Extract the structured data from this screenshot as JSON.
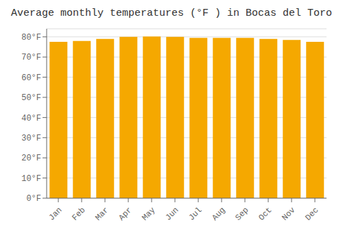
{
  "chart_data": {
    "type": "bar",
    "title": "Average monthly temperatures (°F ) in Bocas del Toro",
    "categories": [
      "Jan",
      "Feb",
      "Mar",
      "Apr",
      "May",
      "Jun",
      "Jul",
      "Aug",
      "Sep",
      "Oct",
      "Nov",
      "Dec"
    ],
    "values": [
      77.5,
      78.0,
      79.0,
      80.0,
      80.2,
      80.0,
      79.5,
      79.5,
      79.5,
      79.0,
      78.5,
      77.5
    ],
    "color": "#F5A800",
    "ylim": [
      0,
      84
    ],
    "yticks": [
      {
        "value": 0,
        "label": "0°F"
      },
      {
        "value": 10,
        "label": "10°F"
      },
      {
        "value": 20,
        "label": "20°F"
      },
      {
        "value": 30,
        "label": "30°F"
      },
      {
        "value": 40,
        "label": "40°F"
      },
      {
        "value": 50,
        "label": "50°F"
      },
      {
        "value": 60,
        "label": "60°F"
      },
      {
        "value": 70,
        "label": "70°F"
      },
      {
        "value": 80,
        "label": "80°F"
      }
    ],
    "grid": true
  }
}
